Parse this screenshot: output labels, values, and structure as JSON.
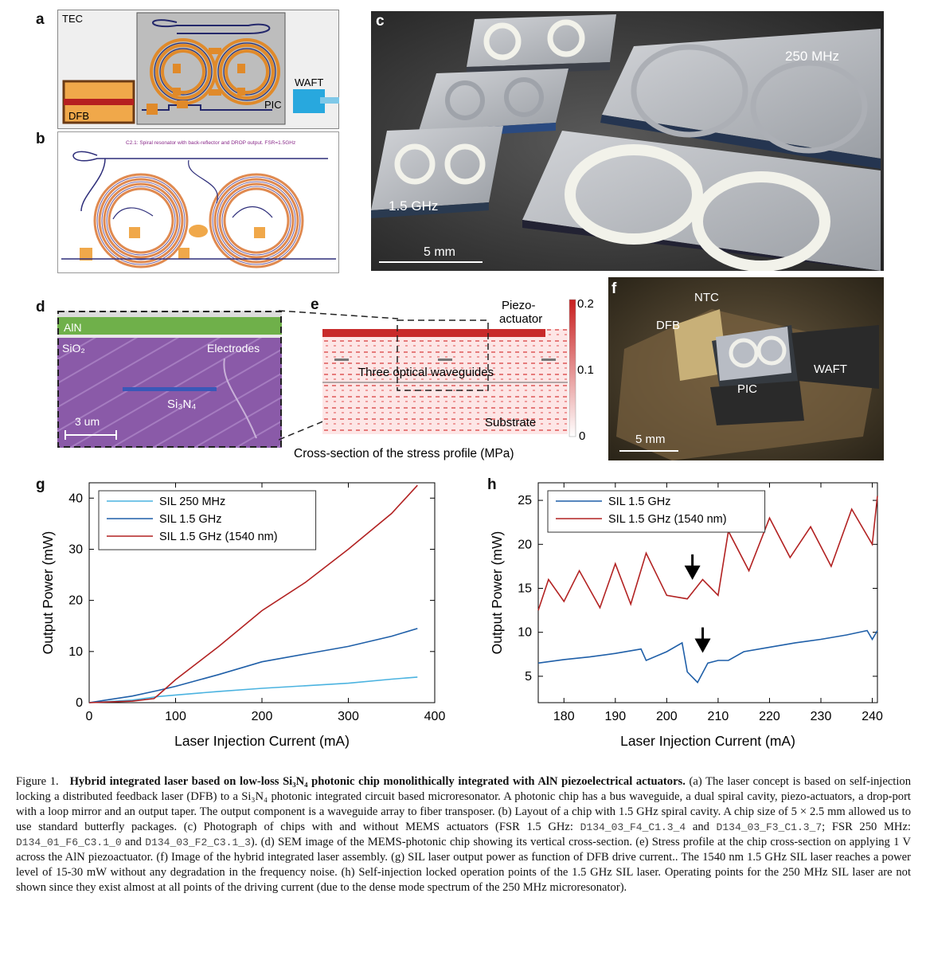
{
  "panels": {
    "a": {
      "label": "a",
      "tec": "TEC",
      "dfb": "DFB",
      "waft": "WAFT",
      "pic": "PIC"
    },
    "b": {
      "label": "b",
      "title": "C2.1: Spiral resonator with back-reflector and DROP output. FSR=1.5GHz"
    },
    "c": {
      "label": "c",
      "label_250": "250 MHz",
      "label_15": "1.5 GHz",
      "scale": "5 mm"
    },
    "d": {
      "label": "d",
      "aln": "AlN",
      "sio2": "SiO₂",
      "electrodes": "Electrodes",
      "si3n4": "Si₃N₄",
      "scale": "3 um"
    },
    "e": {
      "label": "e",
      "piezo_line1": "Piezo-",
      "piezo_line2": "actuator",
      "waveguides": "Three optical waveguides",
      "substrate": "Substrate",
      "caption": "Cross-section of the stress profile (MPa)",
      "cbar_top": "0.2",
      "cbar_mid": "0.1",
      "cbar_bottom": "0"
    },
    "f": {
      "label": "f",
      "ntc": "NTC",
      "dfb": "DFB",
      "pic": "PIC",
      "waft": "WAFT",
      "scale": "5 mm"
    },
    "g": {
      "label": "g"
    },
    "h": {
      "label": "h"
    }
  },
  "chart_data": [
    {
      "type": "line",
      "panel": "g",
      "xlabel": "Laser Injection Current (mA)",
      "ylabel": "Output Power (mW)",
      "xlim": [
        0,
        400
      ],
      "ylim": [
        0,
        43
      ],
      "xticks": [
        "0",
        "100",
        "200",
        "300",
        "400"
      ],
      "yticks": [
        "0",
        "10",
        "20",
        "30",
        "40"
      ],
      "legend_position": "top-left",
      "series": [
        {
          "name": "SIL 250 MHz",
          "color": "#4bb3e0",
          "x": [
            0,
            50,
            80,
            100,
            150,
            200,
            250,
            300,
            350,
            380
          ],
          "values": [
            0,
            0.5,
            1.2,
            1.5,
            2.2,
            2.8,
            3.3,
            3.8,
            4.6,
            5.0
          ]
        },
        {
          "name": "SIL 1.5 GHz",
          "color": "#1f5fa8",
          "x": [
            0,
            50,
            80,
            100,
            150,
            200,
            250,
            300,
            350,
            380
          ],
          "values": [
            0,
            1.3,
            2.4,
            3.2,
            5.5,
            8.0,
            9.5,
            11.0,
            13.0,
            14.5
          ]
        },
        {
          "name": "SIL 1.5 GHz (1540 nm)",
          "color": "#b22222",
          "x": [
            0,
            50,
            75,
            80,
            100,
            150,
            200,
            250,
            300,
            350,
            380
          ],
          "values": [
            0,
            0.3,
            0.8,
            1.5,
            4.5,
            11.0,
            18.0,
            23.5,
            30.0,
            37.0,
            42.5
          ]
        }
      ]
    },
    {
      "type": "line",
      "panel": "h",
      "xlabel": "Laser Injection Current (mA)",
      "ylabel": "Output Power (mW)",
      "xlim": [
        175,
        241
      ],
      "ylim": [
        2,
        27
      ],
      "xticks": [
        "180",
        "190",
        "200",
        "210",
        "220",
        "230",
        "240"
      ],
      "yticks": [
        "5",
        "10",
        "15",
        "20",
        "25"
      ],
      "legend_position": "top-left",
      "series": [
        {
          "name": "SIL 1.5 GHz",
          "color": "#1f5fa8",
          "x": [
            175,
            180,
            185,
            190,
            195,
            196,
            200,
            203,
            204,
            206,
            208,
            210,
            212,
            215,
            220,
            225,
            230,
            235,
            239,
            240,
            241
          ],
          "values": [
            6.5,
            6.9,
            7.2,
            7.6,
            8.1,
            6.8,
            7.8,
            8.8,
            5.5,
            4.3,
            6.5,
            6.8,
            6.8,
            7.8,
            8.3,
            8.8,
            9.2,
            9.7,
            10.2,
            9.2,
            10.2
          ]
        },
        {
          "name": "SIL 1.5 GHz (1540 nm)",
          "color": "#b22222",
          "x": [
            175,
            177,
            180,
            183,
            187,
            190,
            193,
            196,
            200,
            204,
            207,
            210,
            212,
            216,
            220,
            224,
            228,
            232,
            236,
            240,
            241
          ],
          "values": [
            12.5,
            16.0,
            13.5,
            17.0,
            12.8,
            17.8,
            13.2,
            19.0,
            14.2,
            13.8,
            16.0,
            14.2,
            21.5,
            17.0,
            23.0,
            18.5,
            22.0,
            17.5,
            24.0,
            20.0,
            25.5
          ]
        }
      ],
      "annotations": [
        {
          "type": "arrow",
          "x": 205,
          "y": 16.5
        },
        {
          "type": "arrow",
          "x": 207,
          "y": 8.2
        }
      ]
    }
  ],
  "caption": {
    "fig_label": "Figure 1.",
    "bold_title": "Hybrid integrated laser based on low-loss Si₃N₄ photonic chip monolithically integrated with AlN piezoelectrical actuators.",
    "text_1": "(a) The laser concept is based on self-injection locking a distributed feedback laser (DFB) to a Si₃N₄ photonic integrated circuit based microresonator. A photonic chip has a bus waveguide, a dual spiral cavity, piezo-actuators, a drop-port with a loop mirror and an output taper. The output component is a waveguide array to fiber transposer. (b) Layout of a chip with 1.5 GHz spiral cavity. A chip size of 5 × 2.5 mm allowed us to use standard butterfly packages. (c) Photograph of chips with and without MEMS actuators (FSR 1.5 GHz:",
    "code_1": "D134_03_F4_C1.3_4",
    "and_1": "and",
    "code_2": "D134_03_F3_C1.3_7",
    "text_2": "; FSR 250 MHz:",
    "code_3": "D134_01_F6_C3.1_0",
    "and_2": "and",
    "code_4": "D134_03_F2_C3.1_3",
    "text_3": "). (d) SEM image of the MEMS-photonic chip showing its vertical cross-section. (e) Stress profile at the chip cross-section on applying 1 V across the AlN piezoactuator. (f) Image of the hybrid integrated laser assembly. (g) SIL laser output power as function of DFB drive current.. The 1540 nm 1.5 GHz SIL laser reaches a power level of 15-30 mW without any degradation in the frequency noise. (h) Self-injection locked operation points of the 1.5 GHz SIL laser. Operating points for the 250 MHz SIL laser are not shown since they exist almost at all points of the driving current (due to the dense mode spectrum of the 250 MHz microresonator)."
  }
}
